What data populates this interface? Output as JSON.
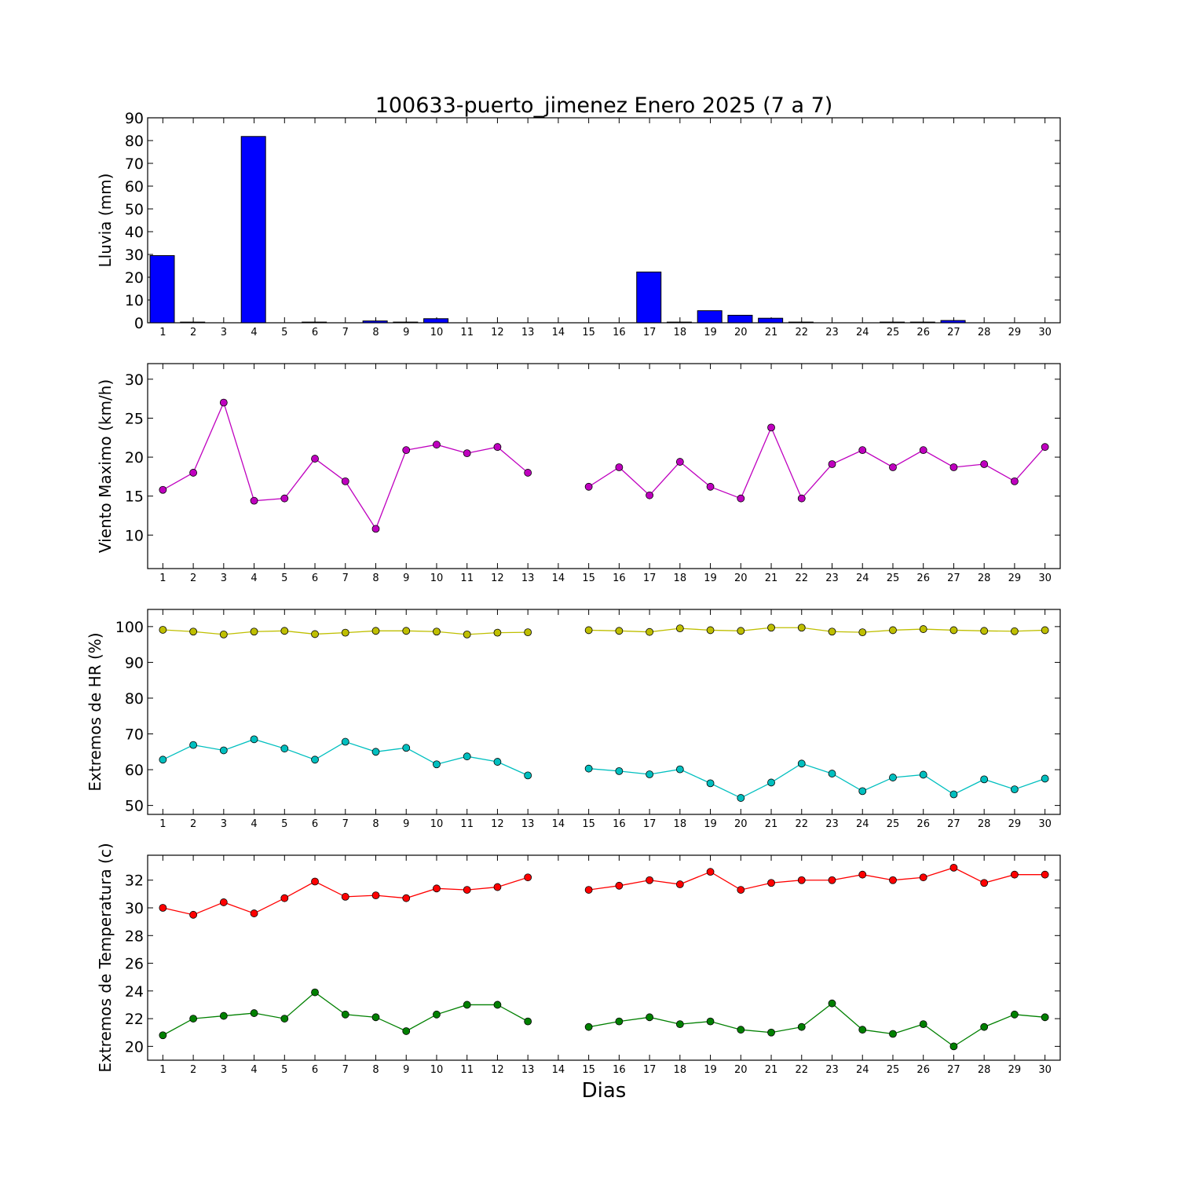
{
  "title": "100633-puerto_jimenez Enero 2025  (7 a 7)",
  "xlabel": "Dias",
  "colors": {
    "rain": "#0000ff",
    "wind": "#bf00bf",
    "hr_max": "#bfbf00",
    "hr_min": "#00bfbf",
    "temp_max": "#ff0000",
    "temp_min": "#008000"
  },
  "chart_data": [
    {
      "type": "bar",
      "ylabel": "Lluvia (mm)",
      "ylim": [
        0,
        90
      ],
      "yticks": [
        0,
        10,
        20,
        30,
        40,
        50,
        60,
        70,
        80,
        90
      ],
      "categories": [
        1,
        2,
        3,
        4,
        5,
        6,
        7,
        8,
        9,
        10,
        11,
        12,
        13,
        14,
        15,
        16,
        17,
        18,
        19,
        20,
        21,
        22,
        23,
        24,
        25,
        26,
        27,
        28,
        29,
        30
      ],
      "values": [
        29.5,
        0.3,
        0,
        81.8,
        0,
        0.3,
        0,
        0.8,
        0.3,
        1.8,
        0,
        0,
        0,
        0,
        0,
        0,
        22.3,
        0.3,
        5.3,
        3.3,
        2.0,
        0.3,
        0,
        0,
        0.3,
        0.3,
        1.0,
        0,
        0,
        0
      ]
    },
    {
      "type": "line",
      "ylabel": "Viento Maximo (km/h)",
      "ylim": [
        5.7,
        32
      ],
      "yticks": [
        10,
        15,
        20,
        25,
        30
      ],
      "x": [
        1,
        2,
        3,
        4,
        5,
        6,
        7,
        8,
        9,
        10,
        11,
        12,
        13,
        14,
        15,
        16,
        17,
        18,
        19,
        20,
        21,
        22,
        23,
        24,
        25,
        26,
        27,
        28,
        29,
        30
      ],
      "series": [
        {
          "values": [
            15.8,
            18.0,
            27.0,
            14.4,
            14.7,
            19.8,
            16.9,
            10.8,
            20.9,
            21.6,
            20.5,
            21.3,
            18.0,
            null,
            16.2,
            18.7,
            15.1,
            19.4,
            16.2,
            14.7,
            23.8,
            14.7,
            19.1,
            20.9,
            18.7,
            20.9,
            18.7,
            19.1,
            16.9,
            21.3
          ]
        }
      ]
    },
    {
      "type": "line",
      "ylabel": "Extremos de HR (%)",
      "ylim": [
        47.5,
        104.8
      ],
      "yticks": [
        50,
        60,
        70,
        80,
        90,
        100
      ],
      "x": [
        1,
        2,
        3,
        4,
        5,
        6,
        7,
        8,
        9,
        10,
        11,
        12,
        13,
        14,
        15,
        16,
        17,
        18,
        19,
        20,
        21,
        22,
        23,
        24,
        25,
        26,
        27,
        28,
        29,
        30
      ],
      "series": [
        {
          "values": [
            99.1,
            98.6,
            97.8,
            98.6,
            98.8,
            97.9,
            98.3,
            98.8,
            98.8,
            98.6,
            97.8,
            98.3,
            98.4,
            null,
            99.0,
            98.8,
            98.5,
            99.5,
            99.0,
            98.8,
            99.7,
            99.7,
            98.6,
            98.4,
            99.0,
            99.3,
            99.0,
            98.8,
            98.7,
            99.0
          ]
        },
        {
          "values": [
            62.8,
            66.9,
            65.4,
            68.5,
            65.9,
            62.8,
            67.8,
            65.0,
            66.1,
            61.5,
            63.7,
            62.2,
            58.4,
            null,
            60.3,
            59.6,
            58.7,
            60.1,
            56.2,
            52.1,
            56.4,
            61.7,
            58.9,
            54.0,
            57.8,
            58.6,
            53.1,
            57.3,
            54.5,
            57.5
          ]
        }
      ]
    },
    {
      "type": "line",
      "ylabel": "Extremos de Temperatura (c)",
      "ylim": [
        19.0,
        33.8
      ],
      "yticks": [
        20,
        22,
        24,
        26,
        28,
        30,
        32
      ],
      "x": [
        1,
        2,
        3,
        4,
        5,
        6,
        7,
        8,
        9,
        10,
        11,
        12,
        13,
        14,
        15,
        16,
        17,
        18,
        19,
        20,
        21,
        22,
        23,
        24,
        25,
        26,
        27,
        28,
        29,
        30
      ],
      "series": [
        {
          "values": [
            30.0,
            29.5,
            30.4,
            29.6,
            30.7,
            31.9,
            30.8,
            30.9,
            30.7,
            31.4,
            31.3,
            31.5,
            32.2,
            null,
            31.3,
            31.6,
            32.0,
            31.7,
            32.6,
            31.3,
            31.8,
            32.0,
            32.0,
            32.4,
            32.0,
            32.2,
            32.9,
            31.8,
            32.4,
            32.4
          ]
        },
        {
          "values": [
            20.8,
            22.0,
            22.2,
            22.4,
            22.0,
            23.9,
            22.3,
            22.1,
            21.1,
            22.3,
            23.0,
            23.0,
            21.8,
            null,
            21.4,
            21.8,
            22.1,
            21.6,
            21.8,
            21.2,
            21.0,
            21.4,
            23.1,
            21.2,
            20.9,
            21.6,
            20.0,
            21.4,
            22.3,
            22.1
          ]
        }
      ]
    }
  ]
}
